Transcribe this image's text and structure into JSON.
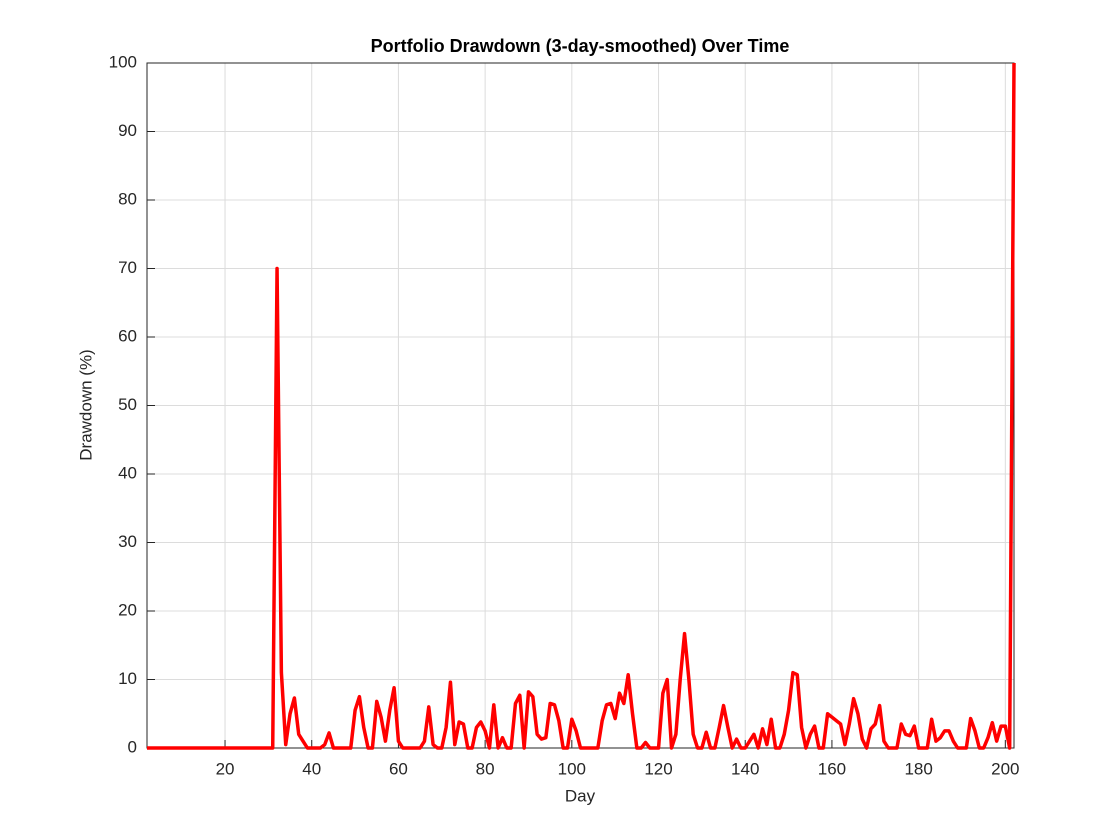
{
  "chart_data": {
    "type": "line",
    "title": "Portfolio Drawdown (3-day-smoothed) Over Time",
    "xlabel": "Day",
    "ylabel": "Drawdown (%)",
    "x": [
      2,
      3,
      4,
      5,
      6,
      7,
      8,
      9,
      10,
      11,
      12,
      13,
      14,
      15,
      16,
      17,
      18,
      19,
      20,
      21,
      22,
      23,
      24,
      25,
      26,
      27,
      28,
      29,
      30,
      31,
      32,
      33,
      34,
      35,
      36,
      37,
      38,
      39,
      40,
      41,
      42,
      43,
      44,
      45,
      46,
      47,
      48,
      49,
      50,
      51,
      52,
      53,
      54,
      55,
      56,
      57,
      58,
      59,
      60,
      61,
      62,
      63,
      64,
      65,
      66,
      67,
      68,
      69,
      70,
      71,
      72,
      73,
      74,
      75,
      76,
      77,
      78,
      79,
      80,
      81,
      82,
      83,
      84,
      85,
      86,
      87,
      88,
      89,
      90,
      91,
      92,
      93,
      94,
      95,
      96,
      97,
      98,
      99,
      100,
      101,
      102,
      103,
      104,
      105,
      106,
      107,
      108,
      109,
      110,
      111,
      112,
      113,
      114,
      115,
      116,
      117,
      118,
      119,
      120,
      121,
      122,
      123,
      124,
      125,
      126,
      127,
      128,
      129,
      130,
      131,
      132,
      133,
      134,
      135,
      136,
      137,
      138,
      139,
      140,
      141,
      142,
      143,
      144,
      145,
      146,
      147,
      148,
      149,
      150,
      151,
      152,
      153,
      154,
      155,
      156,
      157,
      158,
      159,
      160,
      161,
      162,
      163,
      164,
      165,
      166,
      167,
      168,
      169,
      170,
      171,
      172,
      173,
      174,
      175,
      176,
      177,
      178,
      179,
      180,
      181,
      182,
      183,
      184,
      185,
      186,
      187,
      188,
      189,
      190,
      191,
      192,
      193,
      194,
      195,
      196,
      197,
      198,
      199,
      200,
      201,
      202
    ],
    "series": [
      {
        "color": "#ff0000",
        "values": [
          0,
          0,
          0,
          0,
          0,
          0,
          0,
          0,
          0,
          0,
          0,
          0,
          0,
          0,
          0,
          0,
          0,
          0,
          0,
          0,
          0,
          0,
          0,
          0,
          0,
          0,
          0,
          0,
          0,
          0,
          70,
          11,
          0.5,
          5,
          7.3,
          2,
          1,
          0,
          0,
          0,
          0,
          0.5,
          2.2,
          0,
          0,
          0,
          0,
          0,
          5.5,
          7.5,
          3,
          0,
          0,
          6.8,
          4.5,
          1,
          5.5,
          8.8,
          1,
          0,
          0,
          0,
          0,
          0,
          1,
          6,
          0.5,
          0,
          0,
          3,
          9.6,
          0.5,
          3.8,
          3.5,
          0,
          0,
          3,
          3.8,
          2.5,
          0,
          6.3,
          0,
          1.5,
          0,
          0,
          6.5,
          7.7,
          0,
          8.2,
          7.5,
          2,
          1.3,
          1.5,
          6.5,
          6.3,
          4,
          0,
          0,
          4.2,
          2.5,
          0,
          0,
          0,
          0,
          0,
          4,
          6.3,
          6.5,
          4.3,
          8,
          6.5,
          10.7,
          5,
          0,
          0,
          0.8,
          0,
          0,
          0,
          8,
          10,
          0,
          2,
          10,
          16.7,
          10,
          2,
          0,
          0,
          2.3,
          0,
          0,
          3,
          6.2,
          3,
          0,
          1.3,
          0,
          0,
          1,
          2,
          0,
          2.8,
          0.5,
          4.2,
          0,
          0,
          2,
          5.5,
          11,
          10.7,
          3,
          0,
          2,
          3.2,
          0,
          0,
          5,
          4.5,
          4,
          3.5,
          0.5,
          3.5,
          7.2,
          5,
          1.3,
          0,
          2.8,
          3.5,
          6.2,
          1,
          0,
          0,
          0,
          3.5,
          2,
          1.8,
          3.2,
          0,
          0,
          0,
          4.2,
          1,
          1.5,
          2.5,
          2.5,
          1,
          0,
          0,
          0,
          4.3,
          2.5,
          0,
          0,
          1.5,
          3.7,
          1,
          3.2,
          3.2,
          0,
          100
        ]
      }
    ],
    "xlim": [
      2,
      202
    ],
    "ylim": [
      0,
      100
    ],
    "xticks": [
      20,
      40,
      60,
      80,
      100,
      120,
      140,
      160,
      180,
      200
    ],
    "yticks": [
      0,
      10,
      20,
      30,
      40,
      50,
      60,
      70,
      80,
      90,
      100
    ],
    "grid": true
  }
}
